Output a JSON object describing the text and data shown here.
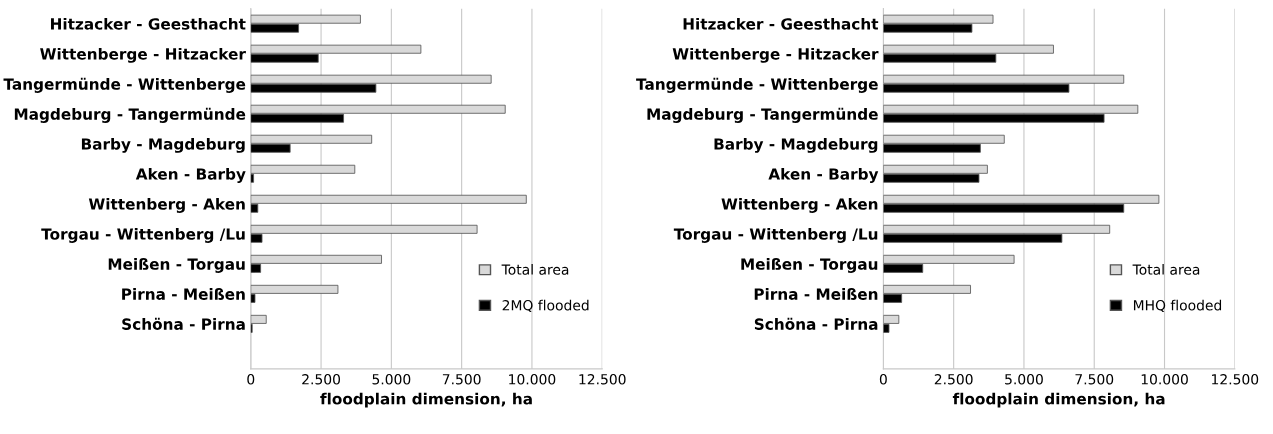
{
  "chart_data": [
    {
      "type": "bar",
      "orientation": "horizontal",
      "xlabel": "floodplain dimension, ha",
      "categories": [
        "Hitzacker - Geesthacht",
        "Wittenberge - Hitzacker",
        "Tangermünde - Wittenberge",
        "Magdeburg - Tangermünde",
        "Barby - Magdeburg",
        "Aken - Barby",
        "Wittenberg - Aken",
        "Torgau - Wittenberg /Lu",
        "Meißen - Torgau",
        "Pirna - Meißen",
        "Schöna - Pirna",
        null
      ],
      "series": [
        {
          "name": "Total area",
          "color": "#d9d9d9",
          "values": [
            3900,
            6050,
            8550,
            9050,
            4300,
            3700,
            9800,
            8050,
            4650,
            3100,
            550,
            null
          ]
        },
        {
          "name": "2MQ flooded",
          "color": "#000000",
          "values": [
            1700,
            2400,
            4450,
            3300,
            1400,
            100,
            250,
            400,
            350,
            150,
            50,
            null
          ]
        }
      ],
      "xlim": [
        0,
        12500
      ],
      "xticks": [
        0,
        {
          "value": 2500,
          "label": "2.500"
        },
        {
          "value": 5000,
          "label": "5.000"
        },
        {
          "value": 7500,
          "label": "7.500"
        },
        {
          "value": 10000,
          "label": "10.000"
        },
        {
          "value": 12500,
          "label": "12.500"
        }
      ],
      "grid": "x",
      "legend": "bottom right"
    },
    {
      "type": "bar",
      "orientation": "horizontal",
      "xlabel": "floodplain dimension, ha",
      "categories": [
        "Hitzacker - Geesthacht",
        "Wittenberge - Hitzacker",
        "Tangermünde - Wittenberge",
        "Magdeburg - Tangermünde",
        "Barby - Magdeburg",
        "Aken - Barby",
        "Wittenberg - Aken",
        "Torgau - Wittenberg /Lu",
        "Meißen - Torgau",
        "Pirna - Meißen",
        "Schöna - Pirna",
        null
      ],
      "series": [
        {
          "name": "Total area",
          "color": "#d9d9d9",
          "values": [
            3900,
            6050,
            8550,
            9050,
            4300,
            3700,
            9800,
            8050,
            4650,
            3100,
            550,
            null
          ]
        },
        {
          "name": "MHQ flooded",
          "color": "#000000",
          "values": [
            3150,
            4000,
            6600,
            7850,
            3450,
            3400,
            8550,
            6350,
            1400,
            650,
            200,
            null
          ]
        }
      ],
      "xlim": [
        0,
        12500
      ],
      "xticks": [
        0,
        {
          "value": 2500,
          "label": "2.500"
        },
        {
          "value": 5000,
          "label": "5.000"
        },
        {
          "value": 7500,
          "label": "7.500"
        },
        {
          "value": 10000,
          "label": "10.000"
        },
        {
          "value": 12500,
          "label": "12.500"
        }
      ],
      "grid": "x",
      "legend": "bottom right"
    }
  ]
}
